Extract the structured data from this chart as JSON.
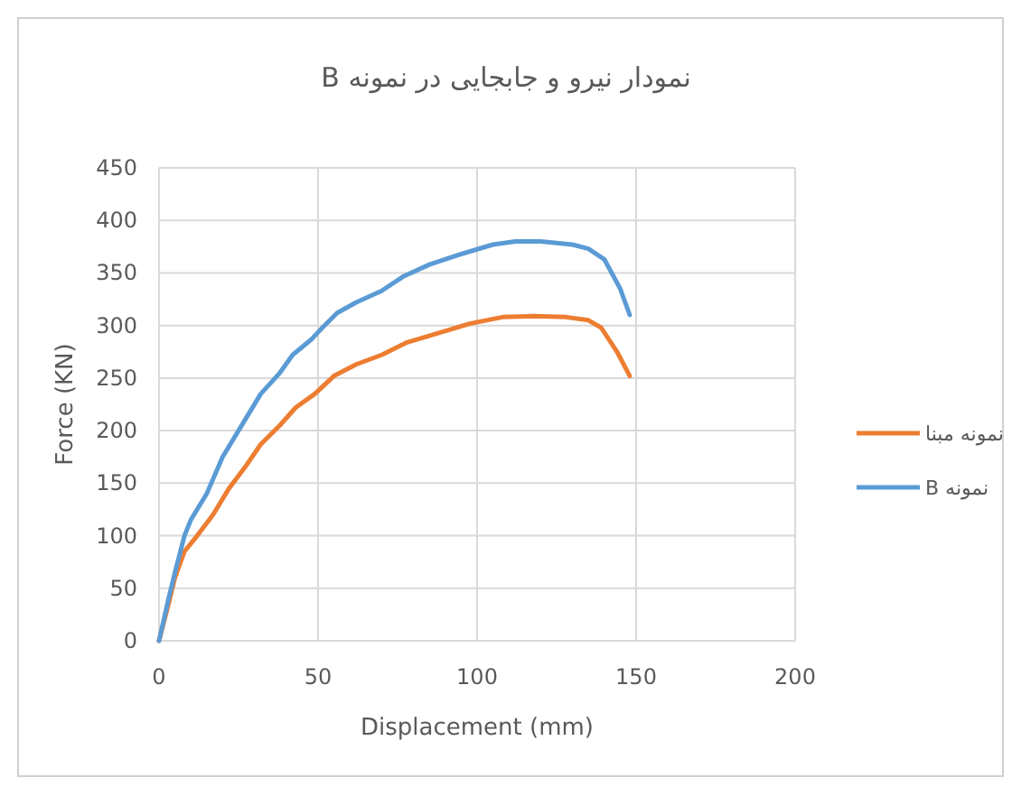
{
  "chart_data": {
    "type": "line",
    "title": "نمودار نیرو و جابجایی در نمونه B",
    "xlabel": "Displacement (mm)",
    "ylabel": "Force (KN)",
    "xlim": [
      0,
      200
    ],
    "xticks": [
      0,
      50,
      100,
      150,
      200
    ],
    "ylim": [
      0,
      450
    ],
    "yticks": [
      0,
      50,
      100,
      150,
      200,
      250,
      300,
      350,
      400,
      450
    ],
    "grid": true,
    "legend": "right",
    "marker": "none",
    "line_style": "solid",
    "series": [
      {
        "name": "نمونه مبنا",
        "color": "#ed7d31",
        "x": [
          0,
          3,
          5,
          8,
          12,
          17,
          22,
          27,
          32,
          38,
          43,
          49,
          55,
          62,
          70,
          78,
          88,
          98,
          108,
          118,
          128,
          135,
          139,
          144,
          148
        ],
        "values": [
          0,
          35,
          60,
          85,
          100,
          120,
          145,
          165,
          187,
          205,
          222,
          235,
          252,
          263,
          272,
          284,
          293,
          302,
          308,
          309,
          308,
          305,
          298,
          275,
          252
        ]
      },
      {
        "name": "نمونه B",
        "color": "#5b9bd5",
        "x": [
          0,
          3,
          5,
          8,
          10,
          15,
          20,
          25,
          28,
          32,
          38,
          42,
          48,
          52,
          56,
          62,
          70,
          77,
          85,
          95,
          105,
          112,
          120,
          130,
          135,
          140,
          145,
          148
        ],
        "values": [
          0,
          40,
          65,
          100,
          115,
          140,
          175,
          200,
          215,
          235,
          255,
          272,
          287,
          300,
          312,
          322,
          333,
          347,
          358,
          368,
          377,
          380,
          380,
          377,
          373,
          363,
          335,
          310
        ]
      }
    ]
  }
}
